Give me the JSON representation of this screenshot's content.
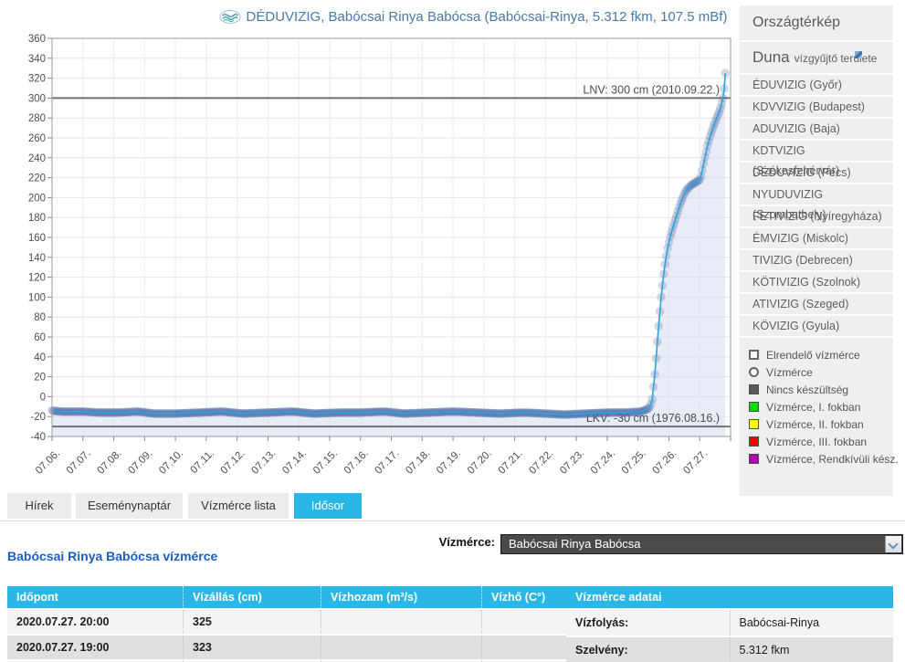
{
  "chart_data": {
    "type": "line",
    "title": "DÉDUVIZIG, Babócsai Rinya Babócsa (Babócsai-Rinya, 5.312 fkm, 107.5 mBf)",
    "xlabel": "",
    "ylabel": "",
    "ylim": [
      -40,
      360
    ],
    "ytick_step": 20,
    "grid": true,
    "legend_position": "none",
    "x_range_days": [
      6,
      28
    ],
    "x_tick_labels": [
      "07.06.",
      "07.07.",
      "07.08.",
      "07.09.",
      "07.10.",
      "07.11.",
      "07.12.",
      "07.13.",
      "07.14.",
      "07.15.",
      "07.16.",
      "07.17.",
      "07.18.",
      "07.19.",
      "07.20.",
      "07.21.",
      "07.22.",
      "07.23.",
      "07.24.",
      "07.25.",
      "07.26.",
      "07.27."
    ],
    "marker_interval_hours": 1,
    "reference_lines": [
      {
        "label": "LNV: 300 cm (2010.09.22.)",
        "value": 300
      },
      {
        "label": "LKV: -30 cm (1976.08.16.)",
        "value": -30
      }
    ],
    "series": [
      {
        "name": "Vízállás (cm)",
        "points": [
          [
            6.0,
            -14
          ],
          [
            6.3,
            -15
          ],
          [
            7.0,
            -15
          ],
          [
            7.5,
            -16
          ],
          [
            8.2,
            -16
          ],
          [
            8.8,
            -15
          ],
          [
            9.3,
            -17
          ],
          [
            10.0,
            -17
          ],
          [
            10.8,
            -16
          ],
          [
            11.5,
            -15
          ],
          [
            12.2,
            -17
          ],
          [
            13.0,
            -16
          ],
          [
            13.8,
            -15
          ],
          [
            14.5,
            -17
          ],
          [
            15.3,
            -16
          ],
          [
            16.0,
            -16
          ],
          [
            16.8,
            -15
          ],
          [
            17.4,
            -17
          ],
          [
            18.2,
            -16
          ],
          [
            19.0,
            -15
          ],
          [
            19.8,
            -16
          ],
          [
            20.5,
            -17
          ],
          [
            21.3,
            -16
          ],
          [
            22.0,
            -17
          ],
          [
            22.6,
            -18
          ],
          [
            23.3,
            -17
          ],
          [
            24.0,
            -16
          ],
          [
            24.6,
            -16
          ],
          [
            25.1,
            -15
          ],
          [
            25.35,
            -12
          ],
          [
            25.45,
            -5
          ],
          [
            25.55,
            25
          ],
          [
            25.65,
            65
          ],
          [
            25.75,
            100
          ],
          [
            25.85,
            128
          ],
          [
            25.95,
            148
          ],
          [
            26.05,
            162
          ],
          [
            26.15,
            172
          ],
          [
            26.25,
            182
          ],
          [
            26.35,
            192
          ],
          [
            26.45,
            200
          ],
          [
            26.55,
            207
          ],
          [
            26.7,
            212
          ],
          [
            26.85,
            215
          ],
          [
            27.0,
            218
          ],
          [
            27.05,
            222
          ],
          [
            27.15,
            238
          ],
          [
            27.25,
            252
          ],
          [
            27.35,
            263
          ],
          [
            27.45,
            272
          ],
          [
            27.55,
            280
          ],
          [
            27.65,
            288
          ],
          [
            27.7,
            293
          ],
          [
            27.75,
            300
          ],
          [
            27.78,
            306
          ],
          [
            27.81,
            315
          ],
          [
            27.83,
            325
          ]
        ]
      }
    ]
  },
  "sidebar": {
    "map_link": "Országtérkép",
    "basin_name": "Duna",
    "basin_suffix": "vízgyűjtő területe",
    "items": [
      "ÉDUVIZIG (Győr)",
      "KDVVIZIG (Budapest)",
      "ADUVIZIG (Baja)",
      "KDTVIZIG (Székesfehérvár)",
      "DÉDUVIZIG (Pécs)",
      "NYUDUVIZIG (Szombathely)",
      "FETIVIZIG (Nyíregyháza)",
      "ÉMVIZIG (Miskolc)",
      "TIVIZIG (Debrecen)",
      "KÖTIVIZIG (Szolnok)",
      "ATIVIZIG (Szeged)",
      "KÖVIZIG (Gyula)"
    ]
  },
  "legend": {
    "items": [
      {
        "label": "Elrendelő vízmérce",
        "swatch": "square-outline"
      },
      {
        "label": "Vízmérce",
        "swatch": "circle-outline"
      },
      {
        "label": "Nincs készültség",
        "swatch": "#5a5a5a"
      },
      {
        "label": "Vízmérce, I. fokban",
        "swatch": "#00dc00"
      },
      {
        "label": "Vízmérce, II. fokban",
        "swatch": "#ffff00"
      },
      {
        "label": "Vízmérce, III. fokban",
        "swatch": "#ff0000"
      },
      {
        "label": "Vízmérce, Rendkívüli kész.",
        "swatch": "#b400b4"
      }
    ]
  },
  "tabs": [
    {
      "label": "Hírek",
      "active": false
    },
    {
      "label": "Eseménynaptár",
      "active": false
    },
    {
      "label": "Vízmérce lista",
      "active": false
    },
    {
      "label": "Idősor",
      "active": true
    }
  ],
  "selector": {
    "label": "Vízmérce:",
    "value": "Babócsai Rinya Babócsa"
  },
  "heading": "Babócsai Rinya Babócsa vízmérce",
  "readings_table": {
    "headers": [
      "Időpont",
      "Vízállás (cm)",
      "Vízhozam (m³/s)",
      "Vízhő (C°)"
    ],
    "rows": [
      [
        "2020.07.27. 20:00",
        "325",
        "",
        ""
      ],
      [
        "2020.07.27. 19:00",
        "323",
        "",
        ""
      ],
      [
        "",
        "",
        "",
        ""
      ]
    ]
  },
  "station_table": {
    "title": "Vízmérce adatai",
    "rows": [
      [
        "Vízfolyás:",
        "Babócsai-Rinya"
      ],
      [
        "Szelvény:",
        "5.312 fkm"
      ],
      [
        "",
        ""
      ]
    ]
  },
  "colors": {
    "accent_cyan": "#29b7e8",
    "heading_blue": "#1a5ec4",
    "title_blue": "#4679ad",
    "line": "#2ea3da",
    "marker": "rgba(70,105,168,0.25)",
    "fill": "rgba(214,221,238,0.55)",
    "ref_line": "#6f6f6f"
  }
}
